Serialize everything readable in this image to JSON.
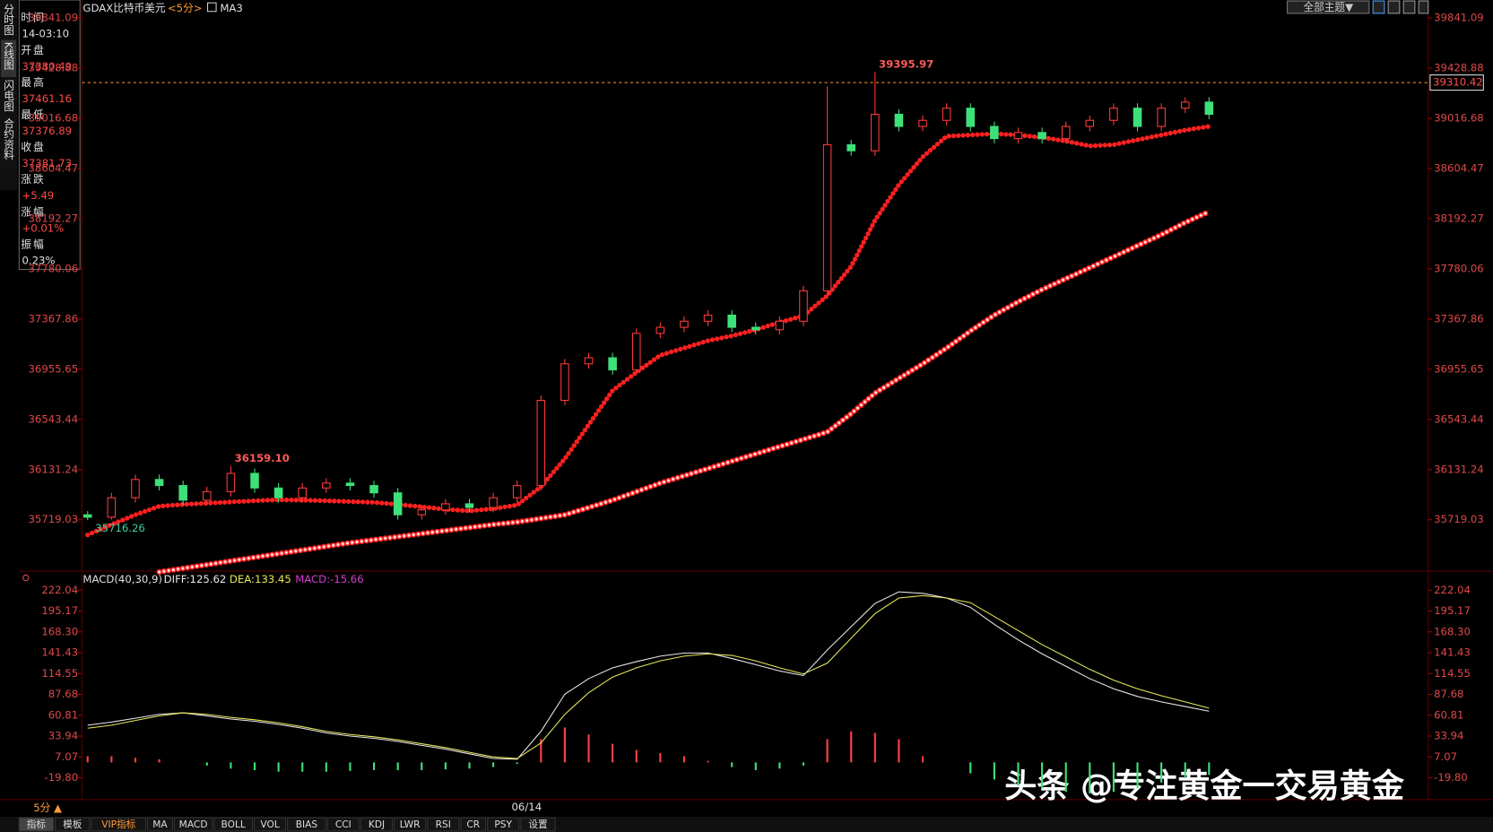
{
  "side_tabs": [
    "分时图",
    "K线图",
    "闪电图",
    "合约资料"
  ],
  "info_panel": [
    {
      "label": "时间",
      "value": "14-03:10"
    },
    {
      "label": "开盘",
      "value": "37380.49"
    },
    {
      "label": "最高",
      "value": "37461.16"
    },
    {
      "label": "最低",
      "value": "37376.89"
    },
    {
      "label": "收盘",
      "value": "37381.73"
    },
    {
      "label": "涨跌",
      "value": "+5.49"
    },
    {
      "label": "涨幅",
      "value": "+0.01%"
    },
    {
      "label": "振幅",
      "value": "0.23%"
    }
  ],
  "header": {
    "symbol": "GDAX比特币美元",
    "period": "<5分>",
    "indicator": "MA3"
  },
  "theme_button": "全部主题▼",
  "chart_data": [
    {
      "type": "candlestick",
      "categories": [
        null,
        null,
        null,
        null,
        null,
        null,
        null,
        null,
        null,
        null,
        null,
        null,
        null,
        null,
        null,
        null,
        null,
        null,
        "06/14",
        null,
        null,
        null,
        null,
        null,
        null,
        null,
        null,
        null,
        null,
        null,
        null,
        null,
        null,
        null,
        null,
        null,
        null,
        null,
        null,
        null,
        null,
        null,
        null,
        null,
        null,
        null,
        null,
        null
      ],
      "open": [
        35760,
        35740,
        35900,
        36050,
        36000,
        35880,
        35950,
        36100,
        35980,
        35900,
        35980,
        36020,
        36000,
        35940,
        35760,
        35800,
        35850,
        35820,
        35900,
        36000,
        36700,
        37000,
        37050,
        36950,
        37250,
        37300,
        37350,
        37400,
        37300,
        37280,
        37350,
        37600,
        38800,
        38750,
        39050,
        38950,
        39000,
        39100,
        38950,
        38850,
        38900,
        38850,
        38950,
        39000,
        39100,
        38950,
        39100,
        39150
      ],
      "high": [
        35790,
        35940,
        36090,
        36090,
        36040,
        35990,
        36159.1,
        36140,
        36020,
        36020,
        36060,
        36060,
        36040,
        35980,
        35840,
        35890,
        35890,
        35940,
        36040,
        36740,
        37040,
        37090,
        37090,
        37290,
        37340,
        37390,
        37440,
        37440,
        37340,
        37390,
        37640,
        39280,
        38840,
        39395.97,
        39090,
        39040,
        39140,
        39140,
        38990,
        38940,
        38940,
        38990,
        39040,
        39140,
        39140,
        39140,
        39190,
        39190
      ],
      "low": [
        35716.26,
        35720,
        35860,
        35960,
        35840,
        35840,
        35910,
        35940,
        35860,
        35860,
        35940,
        35960,
        35900,
        35720,
        35720,
        35760,
        35780,
        35780,
        35860,
        35960,
        36660,
        36960,
        36910,
        36910,
        37210,
        37260,
        37310,
        37260,
        37240,
        37240,
        37310,
        37560,
        38710,
        38710,
        38910,
        38910,
        38960,
        38910,
        38810,
        38810,
        38810,
        38810,
        38910,
        38960,
        38910,
        38910,
        39060,
        39010
      ],
      "close": [
        35740,
        35900,
        36050,
        36000,
        35880,
        35950,
        36100,
        35980,
        35900,
        35980,
        36020,
        36000,
        35940,
        35760,
        35800,
        35850,
        35820,
        35900,
        36000,
        36700,
        37000,
        37050,
        36950,
        37250,
        37300,
        37350,
        37400,
        37300,
        37280,
        37350,
        37600,
        38800,
        38750,
        39050,
        38950,
        39000,
        39100,
        38950,
        38850,
        38900,
        38850,
        38950,
        39000,
        39100,
        38950,
        39100,
        39150,
        39050
      ],
      "up_color": "#ff3b3b",
      "down_color": "#3ee07a",
      "series": [
        {
          "color": "#ff2020",
          "values": [
            35595,
            35680,
            35760,
            35830,
            35845,
            35855,
            35865,
            35875,
            35883,
            35880,
            35875,
            35868,
            35862,
            35845,
            35825,
            35805,
            35792,
            35810,
            35840,
            35990,
            36220,
            36500,
            36780,
            36930,
            37070,
            37130,
            37190,
            37230,
            37280,
            37340,
            37395,
            37560,
            37800,
            38180,
            38470,
            38700,
            38870,
            38880,
            38890,
            38880,
            38860,
            38830,
            38790,
            38800,
            38840,
            38880,
            38920,
            38950
          ]
        },
        {
          "color": "#ffdede",
          "values": [
            null,
            null,
            null,
            35290,
            35320,
            35350,
            35380,
            35410,
            35440,
            35470,
            35500,
            35530,
            35555,
            35580,
            35605,
            35630,
            35655,
            35680,
            35700,
            35730,
            35760,
            35820,
            35880,
            35950,
            36020,
            36080,
            36140,
            36200,
            36260,
            36320,
            36380,
            36440,
            36590,
            36760,
            36880,
            37000,
            37130,
            37270,
            37400,
            37510,
            37610,
            37700,
            37790,
            37880,
            37970,
            38060,
            38160,
            38250
          ]
        }
      ],
      "annotations": [
        {
          "value": 36159.1,
          "label": "36159.10"
        },
        39395.97,
        35716.26
      ],
      "last_price": 39310.42,
      "ylim": [
        35296.7,
        39988.7
      ],
      "yticks": [
        35719.03,
        36131.24,
        36543.44,
        36955.65,
        37367.86,
        37780.06,
        38192.27,
        38604.47,
        39016.68,
        39428.88,
        39841.09
      ]
    },
    {
      "type": "macd",
      "title": "MACD(40,30,9)",
      "legend": [
        {
          "text": "DIFF:125.62",
          "color": "#e8e8e8"
        },
        {
          "text": "DEA:133.45",
          "color": "#e6e65c"
        },
        {
          "text": "MACD:-15.66",
          "color": "#d040d0"
        }
      ],
      "series": [
        {
          "color": "#e8e8e8",
          "values": [
            48,
            52,
            57,
            62,
            64,
            60,
            56,
            53,
            49,
            44,
            38,
            34,
            31,
            27,
            22,
            17,
            11,
            5,
            4,
            40,
            88,
            108,
            122,
            130,
            137,
            141,
            141,
            134,
            126,
            118,
            112,
            145,
            175,
            205,
            220,
            218,
            212,
            200,
            178,
            158,
            140,
            124,
            108,
            95,
            85,
            78,
            72,
            66
          ]
        },
        {
          "color": "#e6e65c",
          "values": [
            44,
            48,
            54,
            60,
            64,
            62,
            58,
            55,
            51,
            46,
            40,
            36,
            33,
            29,
            24,
            19,
            13,
            7,
            5,
            25,
            62,
            90,
            110,
            122,
            131,
            137,
            140,
            138,
            131,
            122,
            114,
            128,
            160,
            192,
            212,
            215,
            212,
            206,
            188,
            170,
            152,
            136,
            120,
            106,
            95,
            86,
            78,
            70
          ]
        }
      ],
      "histogram": {
        "up_color": "#ff4040",
        "down_color": "#3ee07a",
        "values": [
          8,
          8,
          6,
          4,
          0,
          -4,
          -8,
          -10,
          -12,
          -12,
          -12,
          -11,
          -10,
          -10,
          -10,
          -9,
          -8,
          -6,
          -2,
          30,
          45,
          36,
          24,
          16,
          12,
          8,
          2,
          -6,
          -10,
          -8,
          -4,
          30,
          40,
          38,
          30,
          8,
          0,
          -14,
          -22,
          -30,
          -34,
          -38,
          -40,
          -38,
          -33,
          -26,
          -20,
          -16
        ]
      },
      "ylim": [
        -48.0,
        242.9
      ],
      "yticks": [
        222.04,
        195.17,
        {
          "value": 168.3,
          "label": "168.30"
        },
        141.43,
        114.55,
        87.68,
        60.81,
        33.94,
        7.07,
        {
          "value": -19.8,
          "label": "-19.80"
        }
      ]
    }
  ],
  "bottom": {
    "period": "5分 ▲",
    "tabs": [
      "指标",
      "模板",
      "VIP指标",
      "MA",
      "MACD",
      "BOLL",
      "VOL",
      "BIAS",
      "CCI",
      "KDJ",
      "LWR",
      "RSI",
      "CR",
      "PSY",
      "设置"
    ]
  },
  "watermark": "头条 @专注黄金一交易黄金"
}
